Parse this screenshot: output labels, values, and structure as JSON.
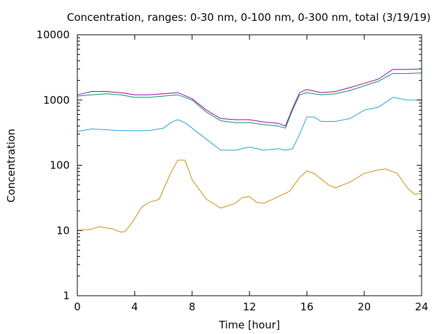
{
  "chart_data": {
    "type": "line",
    "title": "Concentration, ranges: 0-30 nm, 0-100 nm, 0-300 nm, total (3/19/19)",
    "xlabel": "Time [hour]",
    "ylabel": "Concentration",
    "xlim": [
      0,
      24
    ],
    "ylim": [
      1,
      10000
    ],
    "yscale": "log",
    "grid": false,
    "legend": "none",
    "xticks": [
      0,
      4,
      8,
      12,
      16,
      20,
      24
    ],
    "yticks": [
      1,
      10,
      100,
      1000,
      10000
    ],
    "ytick_labels": [
      "1",
      "10",
      "100",
      "1000",
      "10000"
    ],
    "series": [
      {
        "color": "#cc8800",
        "x": [
          0,
          1,
          1.5,
          2.5,
          3,
          3.3,
          3.8,
          4.5,
          5,
          5.7,
          6.5,
          7,
          7.5,
          8,
          9,
          10,
          11,
          11.5,
          12,
          12.5,
          13,
          14,
          14.8,
          15.5,
          16,
          16.5,
          17.5,
          18,
          19,
          20,
          21,
          21.5,
          22.3,
          23,
          23.5,
          24
        ],
        "values": [
          10,
          10.5,
          11.5,
          10.5,
          9.5,
          9.5,
          13,
          23,
          27,
          30,
          75,
          120,
          120,
          60,
          30,
          22,
          26,
          32,
          33,
          27,
          26,
          33,
          40,
          65,
          82,
          75,
          50,
          45,
          55,
          75,
          85,
          88,
          75,
          45,
          36,
          37
        ]
      },
      {
        "color": "#1ea1d3",
        "x": [
          0,
          1,
          2,
          3,
          4,
          5,
          6,
          6.5,
          7,
          7.5,
          8,
          9,
          10,
          11,
          12,
          13,
          14,
          14.5,
          15,
          15.5,
          16,
          16.5,
          17,
          18,
          19,
          20,
          21,
          22,
          23,
          24
        ],
        "values": [
          330,
          360,
          350,
          340,
          340,
          340,
          370,
          450,
          500,
          450,
          370,
          250,
          170,
          170,
          190,
          170,
          180,
          170,
          180,
          300,
          550,
          550,
          470,
          470,
          520,
          700,
          780,
          1100,
          1000,
          1000
        ]
      },
      {
        "color": "#008b6b",
        "x": [
          0,
          1,
          2,
          3,
          4,
          5,
          6,
          7,
          8,
          9,
          10,
          11,
          12,
          13,
          14,
          14.5,
          15,
          15.5,
          16,
          17,
          18,
          19,
          20,
          21,
          22,
          23,
          24
        ],
        "values": [
          1150,
          1200,
          1250,
          1200,
          1100,
          1100,
          1150,
          1200,
          1000,
          650,
          480,
          450,
          450,
          420,
          400,
          370,
          700,
          1200,
          1300,
          1200,
          1250,
          1400,
          1650,
          1950,
          2550,
          2550,
          2600
        ]
      },
      {
        "color": "#94009b",
        "x": [
          0,
          1,
          2,
          3,
          4,
          5,
          6,
          7,
          8,
          9,
          10,
          11,
          12,
          13,
          14,
          14.5,
          15,
          15.5,
          16,
          17,
          18,
          19,
          20,
          21,
          22,
          23,
          24
        ],
        "values": [
          1200,
          1350,
          1350,
          1300,
          1200,
          1200,
          1250,
          1300,
          1050,
          700,
          520,
          500,
          500,
          460,
          440,
          400,
          750,
          1300,
          1450,
          1300,
          1350,
          1550,
          1800,
          2100,
          2950,
          2950,
          3000
        ]
      }
    ]
  }
}
